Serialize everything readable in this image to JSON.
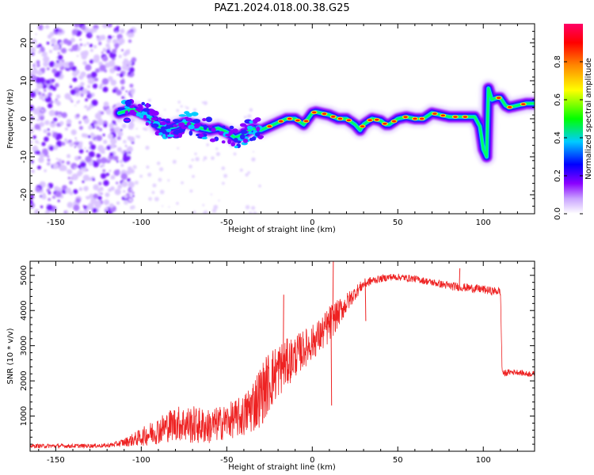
{
  "title": "PAZ1.2024.018.00.38.G25",
  "chart_data": [
    {
      "type": "heatmap",
      "xlabel": "Height of straight line (km)",
      "ylabel": "Frequency (Hz)",
      "xlim": [
        -165,
        130
      ],
      "ylim": [
        -25,
        25
      ],
      "xticks": [
        "-150",
        "-100",
        "-50",
        "0",
        "50",
        "100"
      ],
      "yticks": [
        "-20",
        "-10",
        "0",
        "10",
        "20"
      ],
      "colorbar": {
        "label": "Normalized spectral amplitude",
        "ticks": [
          "0.0",
          "0.2",
          "0.4",
          "0.6",
          "0.8"
        ],
        "range": [
          0,
          1
        ],
        "colors": [
          "#ffffff",
          "#8a00ff",
          "#0000ff",
          "#00ccff",
          "#00ff00",
          "#ffff00",
          "#ff8800",
          "#ff0000",
          "#ff0066"
        ]
      },
      "noise_region": {
        "x": [
          -165,
          -110
        ],
        "y": [
          -25,
          25
        ]
      },
      "ridge": {
        "x": [
          -113,
          -105,
          -95,
          -90,
          -85,
          -80,
          -75,
          -70,
          -65,
          -60,
          -55,
          -50,
          -45,
          -40,
          -35,
          -30,
          -25,
          -20,
          -15,
          -10,
          -5,
          0,
          2,
          5,
          10,
          15,
          20,
          25,
          28,
          30,
          35,
          40,
          43,
          45,
          50,
          55,
          60,
          65,
          70,
          75,
          80,
          85,
          90,
          95,
          98,
          100,
          102,
          103,
          105,
          108,
          110,
          113,
          115,
          120,
          125,
          130
        ],
        "y": [
          1.5,
          2.5,
          0.5,
          -2,
          -2.5,
          -2,
          -1,
          -1.5,
          -2.5,
          -3,
          -2.5,
          -3.5,
          -5,
          -4,
          -2.5,
          -3,
          -2,
          -1,
          0,
          0,
          -1.5,
          1.5,
          1.8,
          1.5,
          1,
          0,
          0,
          -1.5,
          -3,
          -1.5,
          0,
          -0.5,
          -1.5,
          -1.5,
          0,
          0.5,
          0,
          0,
          1.5,
          1,
          0.5,
          0.5,
          0.5,
          0.5,
          -2,
          -8,
          -10,
          8,
          5,
          5.5,
          5.5,
          3.5,
          3,
          3.5,
          4,
          4
        ]
      }
    },
    {
      "type": "line",
      "xlabel": "Height of straight line (km)",
      "ylabel": "SNR (10 * v/v)",
      "xlim": [
        -165,
        130
      ],
      "ylim": [
        0,
        5400
      ],
      "xticks": [
        "-150",
        "-100",
        "-50",
        "0",
        "50",
        "100"
      ],
      "yticks": [
        "1000",
        "2000",
        "3000",
        "4000",
        "5000"
      ],
      "color": "#ee2222",
      "envelope": {
        "x": [
          -165,
          -140,
          -120,
          -115,
          -110,
          -100,
          -90,
          -80,
          -70,
          -60,
          -50,
          -40,
          -35,
          -30,
          -25,
          -20,
          -15,
          -10,
          -5,
          0,
          5,
          10,
          12,
          15,
          20,
          25,
          30,
          35,
          40,
          45,
          50,
          60,
          70,
          80,
          90,
          100,
          105,
          110,
          111,
          112,
          115,
          120,
          125,
          130
        ],
        "mean": [
          150,
          150,
          160,
          200,
          250,
          400,
          600,
          800,
          750,
          700,
          850,
          1000,
          1300,
          1600,
          2000,
          2300,
          2500,
          2700,
          2900,
          3100,
          3300,
          3600,
          3750,
          3900,
          4200,
          4500,
          4750,
          4850,
          4900,
          4950,
          4950,
          4900,
          4800,
          4700,
          4650,
          4600,
          4550,
          4550,
          2300,
          2200,
          2250,
          2250,
          2200,
          2200
        ],
        "spread": [
          60,
          60,
          60,
          80,
          120,
          250,
          400,
          500,
          550,
          500,
          500,
          600,
          800,
          900,
          900,
          800,
          700,
          600,
          550,
          500,
          500,
          550,
          500,
          400,
          300,
          200,
          150,
          120,
          100,
          100,
          100,
          100,
          100,
          120,
          120,
          120,
          120,
          120,
          100,
          100,
          80,
          80,
          80,
          80
        ]
      },
      "spikes": [
        {
          "x": 12,
          "y": 5400
        },
        {
          "x": 11,
          "y": 1300
        },
        {
          "x": -17,
          "y": 4450
        },
        {
          "x": 86,
          "y": 5200
        },
        {
          "x": 31,
          "y": 3700
        }
      ]
    }
  ]
}
